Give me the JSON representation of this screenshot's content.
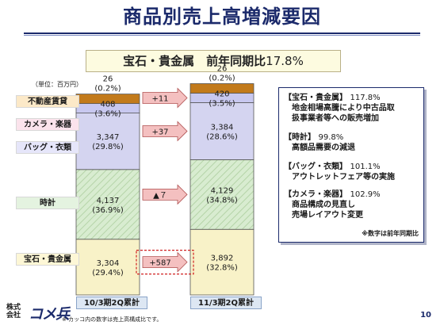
{
  "title": "商品別売上高増減要因",
  "subtitle": {
    "text": "宝石・貴金属　前年同期比",
    "value": "17.8%"
  },
  "unit_label": "（単位：百万円）",
  "colors": {
    "fudosan": "#c27a1b",
    "camera": "#c8c8f0",
    "bag": "#d4d4f0",
    "watch": "#d8ecd0",
    "jewelry": "#f8f2c8",
    "arrow": "#f4c0c0",
    "navy": "#1b2a6b"
  },
  "chart_data": {
    "type": "bar",
    "stacked": true,
    "categories": [
      "10/3期2Q累計",
      "11/3期2Q累計"
    ],
    "series": [
      {
        "name": "宝石・貴金属",
        "values": [
          3304,
          3892
        ],
        "labels": [
          "3,304\n(29.4%)",
          "3,892\n(32.8%)"
        ]
      },
      {
        "name": "時計",
        "values": [
          4137,
          4129
        ],
        "labels": [
          "4,137\n(36.9%)",
          "4,129\n(34.8%)"
        ]
      },
      {
        "name": "バッグ・衣類",
        "values": [
          3347,
          3384
        ],
        "labels": [
          "3,347\n(29.8%)",
          "3,384\n(28.6%)"
        ]
      },
      {
        "name": "カメラ・楽器",
        "values": [
          408,
          420
        ],
        "labels": [
          "408\n(3.6%)",
          "420\n(3.5%)"
        ]
      },
      {
        "name": "不動産賃貸",
        "values": [
          26,
          26
        ],
        "labels": [
          "26\n(0.2%)",
          "26\n(0.2%)"
        ]
      }
    ],
    "changes": [
      {
        "series": "宝石・貴金属",
        "label": "+587"
      },
      {
        "series": "時計",
        "label": "▲７"
      },
      {
        "series": "バッグ・衣類",
        "label": "+37"
      },
      {
        "series": "カメラ・楽器",
        "label": "+11"
      }
    ]
  },
  "notes": [
    {
      "head": "【宝石・貴金属】",
      "value": "117.8%",
      "lines": [
        "地金相場高騰により中古品取",
        "扱事業者等への販売増加"
      ]
    },
    {
      "head": "【時計】",
      "value": "99.8%",
      "lines": [
        "高額品需要の減退"
      ]
    },
    {
      "head": "【バッグ・衣類】",
      "value": "101.1%",
      "lines": [
        "アウトレットフェア等の実施"
      ]
    },
    {
      "head": "【カメラ・楽器】",
      "value": "102.9%",
      "lines": [
        "商品構成の見直し",
        "売場レイアウト変更"
      ]
    }
  ],
  "notes_footer": "※数字は前年同期比",
  "logo": {
    "kabu": "株式",
    "kaisha": "会社",
    "mark": "コメ兵"
  },
  "footnote": "※ カッコ内の数字は売上高構成比です。",
  "page_number": "10"
}
